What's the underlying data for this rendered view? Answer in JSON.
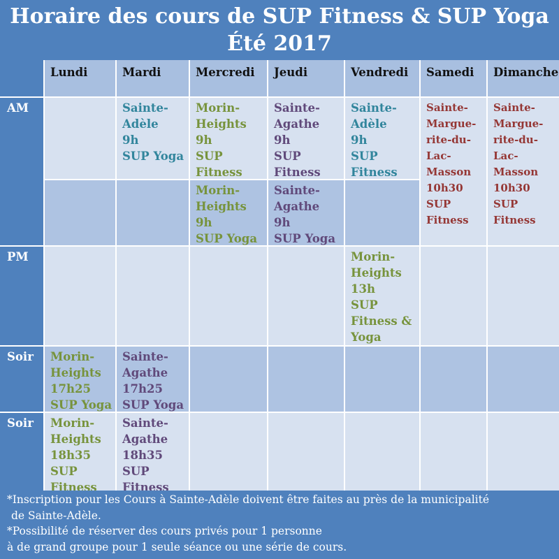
{
  "title": {
    "line1": "Horaire des cours de SUP Fitness & SUP Yoga",
    "line2": "Été 2017"
  },
  "colors": {
    "header_blue": "#4f81bd",
    "green": "#77933c",
    "purple": "#60497a",
    "teal": "#31859c",
    "red": "#953735"
  },
  "days": [
    "Lundi",
    "Mardi",
    "Mercredi",
    "Jeudi",
    "Vendredi",
    "Samedi",
    "Dimanche"
  ],
  "rows": [
    "AM",
    "PM",
    "Soir",
    "Soir"
  ],
  "am1": {
    "mardi": [
      "Sainte-",
      "Adèle",
      "9h",
      "SUP Yoga"
    ],
    "mercredi": [
      "Morin-",
      "Heights",
      "9h",
      "SUP",
      "Fitness"
    ],
    "jeudi": [
      "Sainte-",
      "Agathe",
      "9h",
      "SUP",
      "Fitness"
    ],
    "vendredi": [
      "Sainte-",
      "Adèle",
      "9h",
      "SUP",
      "Fitness"
    ],
    "samedi": [
      "Sainte-",
      "Margue-",
      "rite-du-",
      "Lac-",
      "Masson",
      "10h30",
      "SUP",
      "Fitness"
    ],
    "dimanche": [
      "Sainte-",
      "Margue-",
      "rite-du-",
      "Lac-",
      "Masson",
      "10h30",
      "SUP",
      "Fitness"
    ]
  },
  "am2": {
    "mercredi": [
      "Morin-",
      "Heights",
      "9h",
      "SUP  Yoga"
    ],
    "jeudi": [
      "Sainte-",
      "Agathe",
      "9h",
      "SUP Yoga"
    ]
  },
  "pm": {
    "vendredi": [
      "Morin-",
      "Heights",
      "13h",
      "SUP",
      "Fitness &",
      "Yoga"
    ]
  },
  "soir1": {
    "lundi": [
      "Morin-",
      "Heights",
      "17h25",
      "SUP Yoga"
    ],
    "mardi": [
      "Sainte-",
      "Agathe",
      "17h25",
      "SUP Yoga"
    ]
  },
  "soir2": {
    "lundi": [
      "Morin-",
      "Heights",
      "18h35",
      "SUP",
      "Fitness"
    ],
    "mardi": [
      "Sainte-",
      "Agathe",
      "18h35",
      "SUP",
      "Fitness"
    ]
  },
  "footer": {
    "line1": "*Inscription pour les Cours à Sainte-Adèle doivent être faites au près de la municipalité",
    "line2": "de Sainte-Adèle.",
    "line3": "*Possibilité de réserver des cours privés pour 1 personne",
    "line4": "à de grand groupe pour 1 seule séance ou une série de cours."
  }
}
